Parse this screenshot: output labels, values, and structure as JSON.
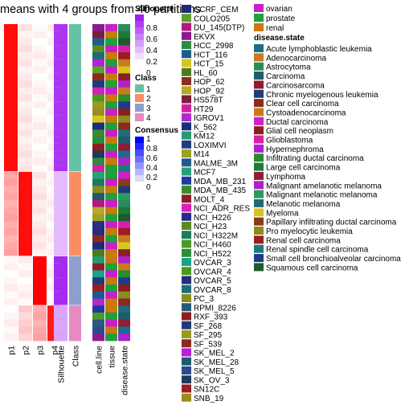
{
  "chart_data": {
    "type": "heatmap",
    "title": "means with 4 groups from 40 partitions",
    "columns": [
      "p1",
      "p2",
      "p3",
      "p4",
      "Silhouette",
      "Class",
      "cell.line",
      "tissue",
      "disease.state"
    ],
    "groups": [
      {
        "class": 1,
        "rows": 21,
        "p": [
          0.95,
          0.05,
          0.0,
          0.0
        ],
        "silhouette": 0.9
      },
      {
        "class": 2,
        "rows": 12,
        "p": [
          0.3,
          0.95,
          0.05,
          0.0
        ],
        "silhouette": 0.3
      },
      {
        "class": 3,
        "rows": 7,
        "p": [
          0.0,
          0.0,
          1.0,
          0.0
        ],
        "silhouette": 0.95
      },
      {
        "class": 4,
        "rows": 5,
        "p": [
          0.0,
          0.15,
          0.3,
          0.9
        ],
        "silhouette": 0.4
      }
    ],
    "legends": {
      "silhouette": {
        "title": "Silhouette",
        "ticks": [
          "0.8",
          "0.6",
          "0.4",
          "0.2",
          "0"
        ]
      },
      "class": {
        "title": "Class",
        "items": [
          "1",
          "2",
          "3",
          "4"
        ],
        "colors": [
          "#66C2A5",
          "#FC8D62",
          "#8DA0CB",
          "#E78AC3"
        ]
      },
      "consensus": {
        "title": "Consensus",
        "ticks": [
          "1",
          "0.8",
          "0.6",
          "0.4",
          "0.2",
          "0"
        ]
      },
      "cell_line": {
        "items": [
          "CCRF_CEM",
          "COLO205",
          "DU_145(DTP)",
          "EKVX",
          "HCC_2998",
          "HCT_116",
          "HCT_15",
          "HL_60",
          "HOP_62",
          "HOP_92",
          "HS578T",
          "HT29",
          "IGROV1",
          "K_562",
          "KM12",
          "LOXIMVI",
          "M14",
          "MALME_3M",
          "MCF7",
          "MDA_MB_231",
          "MDA_MB_435",
          "MOLT_4",
          "NCI_ADR_RES",
          "NCI_H226",
          "NCI_H23",
          "NCI_H322M",
          "NCI_H460",
          "NCI_H522",
          "OVCAR_3",
          "OVCAR_4",
          "OVCAR_5",
          "OVCAR_8",
          "PC_3",
          "RPMI_8226",
          "RXF_393",
          "SF_268",
          "SF_295",
          "SF_539",
          "SK_MEL_2",
          "SK_MEL_28",
          "SK_MEL_5",
          "SK_OV_3",
          "SN12C",
          "SNB_19"
        ],
        "colors": [
          "#1F2A7A",
          "#5CA02A",
          "#B2177E",
          "#8C1A8F",
          "#2F8C3F",
          "#1C5C8C",
          "#D8C420",
          "#4E7A1E",
          "#8C2C1E",
          "#B8A92A",
          "#7A1E3A",
          "#D41FA3",
          "#B02AD0",
          "#1A2E7A",
          "#2A9A6E",
          "#1E3C7A",
          "#9AA21E",
          "#1E5C8C",
          "#2AA078",
          "#1E3A9A",
          "#3A8C2A",
          "#8C1E2A",
          "#D81FB8",
          "#2A2A8C",
          "#5A8C1E",
          "#1E7A5C",
          "#4A9A2A",
          "#2A8C3A",
          "#1EA08C",
          "#4A9A1E",
          "#2A2A7A",
          "#1E6C7A",
          "#8C8C1E",
          "#2A5A7A",
          "#8C1E1E",
          "#1E3A7A",
          "#9A9A1E",
          "#8C2A1E",
          "#B81FD8",
          "#1E5A6C",
          "#2A4A8C",
          "#1E3A5C",
          "#9A1E1E",
          "#9A8C1E"
        ]
      },
      "tissue": {
        "items": [
          "ovarian",
          "prostate",
          "renal"
        ],
        "colors": [
          "#C81FC8",
          "#1EA03A",
          "#C87A0A"
        ]
      },
      "disease_state": {
        "title": "disease.state",
        "items": [
          "Acute lymphoblastic leukemia",
          "Adenocarcinoma",
          "Astrocytoma",
          "Carcinoma",
          "Carcinosarcoma",
          "Chronic myelogenous leukemia",
          "Clear cell carcinoma",
          "Cystoadenocarcinoma",
          "Ductal carcinoma",
          "Glial cell neoplasm",
          "Glioblastoma",
          "Hypernephroma",
          "Infiltrating ductal carcinoma",
          "Large cell carcinoma",
          "Lymphoma",
          "Malignant amelanotic melanoma",
          "Malignant melanotic melanoma",
          "Melanotic melanoma",
          "Myeloma",
          "Papillary infiltrating ductal carcinoma",
          "Pro myelocytic leukemia",
          "Renal cell carcinoma",
          "Renal spindle cell carcinoma",
          "Small cell bronchioalveolar carcinoma",
          "Squamous cell carcinoma"
        ],
        "colors": [
          "#1E6C8C",
          "#C87A1E",
          "#2A8C5A",
          "#1E5C6C",
          "#8C1E2A",
          "#1E3A7A",
          "#8C2A1E",
          "#C87A1E",
          "#D01FC8",
          "#8C1E1E",
          "#D81FA8",
          "#B01FD0",
          "#2A8C2A",
          "#1E7A3A",
          "#8C1E3A",
          "#B01FC8",
          "#2A9A5A",
          "#1E6C7A",
          "#D8C41E",
          "#8C3A1E",
          "#8C8C1E",
          "#9A1E1E",
          "#1E7A7A",
          "#1E3A8C",
          "#1E5A2A"
        ]
      }
    }
  }
}
